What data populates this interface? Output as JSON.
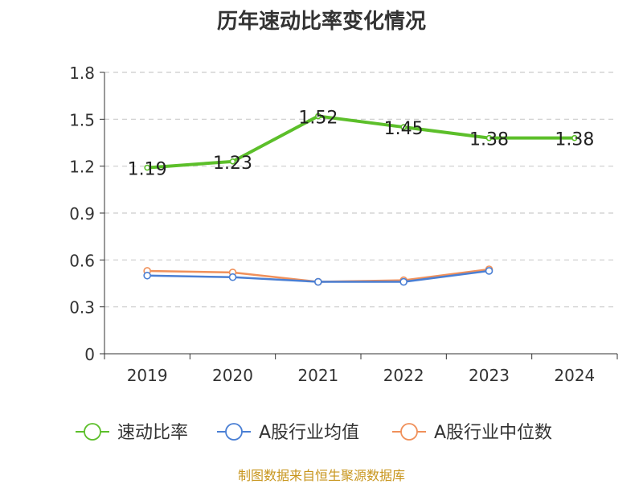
{
  "source": "制图数据来自恒生聚源数据库",
  "chart_data": {
    "type": "line",
    "title": "历年速动比率变化情况",
    "xlabel": "",
    "ylabel": "",
    "categories": [
      "2019",
      "2020",
      "2021",
      "2022",
      "2023",
      "2024"
    ],
    "ylim": [
      0,
      1.8
    ],
    "yticks": [
      0,
      0.3,
      0.6,
      0.9,
      1.2,
      1.5,
      1.8
    ],
    "grid": true,
    "legend_position": "bottom",
    "series": [
      {
        "name": "速动比率",
        "color": "#5cbf2a",
        "show_labels": true,
        "values": [
          1.19,
          1.23,
          1.52,
          1.45,
          1.38,
          1.38
        ]
      },
      {
        "name": "A股行业均值",
        "color": "#4a7fd4",
        "show_labels": false,
        "values": [
          0.5,
          0.49,
          0.46,
          0.46,
          0.53,
          null
        ]
      },
      {
        "name": "A股行业中位数",
        "color": "#f0905a",
        "show_labels": false,
        "values": [
          0.53,
          0.52,
          0.46,
          0.47,
          0.54,
          null
        ]
      }
    ]
  }
}
